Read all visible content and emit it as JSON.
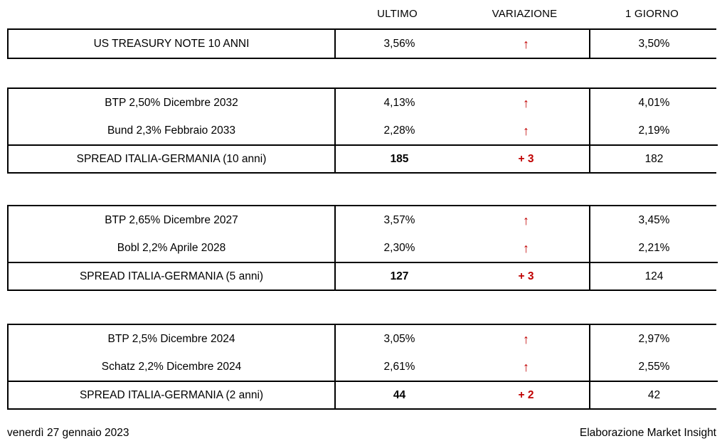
{
  "table": {
    "columns": [
      "ULTIMO",
      "VARIAZIONE",
      "1 GIORNO"
    ],
    "groups": [
      {
        "rows": [
          {
            "label": "US TREASURY NOTE 10 ANNI",
            "ultimo": "3,56%",
            "variazione": "↑",
            "giorno": "3,50%"
          }
        ]
      },
      {
        "rows": [
          {
            "label": "BTP 2,50% Dicembre 2032",
            "ultimo": "4,13%",
            "variazione": "↑",
            "giorno": "4,01%"
          },
          {
            "label": "Bund 2,3% Febbraio 2033",
            "ultimo": "2,28%",
            "variazione": "↑",
            "giorno": "2,19%"
          }
        ],
        "spread": {
          "label": "SPREAD ITALIA-GERMANIA (10 anni)",
          "ultimo": "185",
          "variazione": "+ 3",
          "giorno": "182"
        }
      },
      {
        "rows": [
          {
            "label": "BTP 2,65% Dicembre 2027",
            "ultimo": "3,57%",
            "variazione": "↑",
            "giorno": "3,45%"
          },
          {
            "label": "Bobl 2,2% Aprile 2028",
            "ultimo": "2,30%",
            "variazione": "↑",
            "giorno": "2,21%"
          }
        ],
        "spread": {
          "label": "SPREAD ITALIA-GERMANIA (5 anni)",
          "ultimo": "127",
          "variazione": "+ 3",
          "giorno": "124"
        }
      },
      {
        "rows": [
          {
            "label": "BTP 2,5% Dicembre 2024",
            "ultimo": "3,05%",
            "variazione": "↑",
            "giorno": "2,97%"
          },
          {
            "label": "Schatz 2,2% Dicembre 2024",
            "ultimo": "2,61%",
            "variazione": "↑",
            "giorno": "2,55%"
          }
        ],
        "spread": {
          "label": "SPREAD ITALIA-GERMANIA (2 anni)",
          "ultimo": "44",
          "variazione": "+ 2",
          "giorno": "42"
        }
      }
    ]
  },
  "footer": {
    "date": "venerdì 27 gennaio 2023",
    "credit": "Elaborazione Market Insight"
  },
  "colors": {
    "accent_red": "#c00000",
    "border_black": "#000000"
  }
}
